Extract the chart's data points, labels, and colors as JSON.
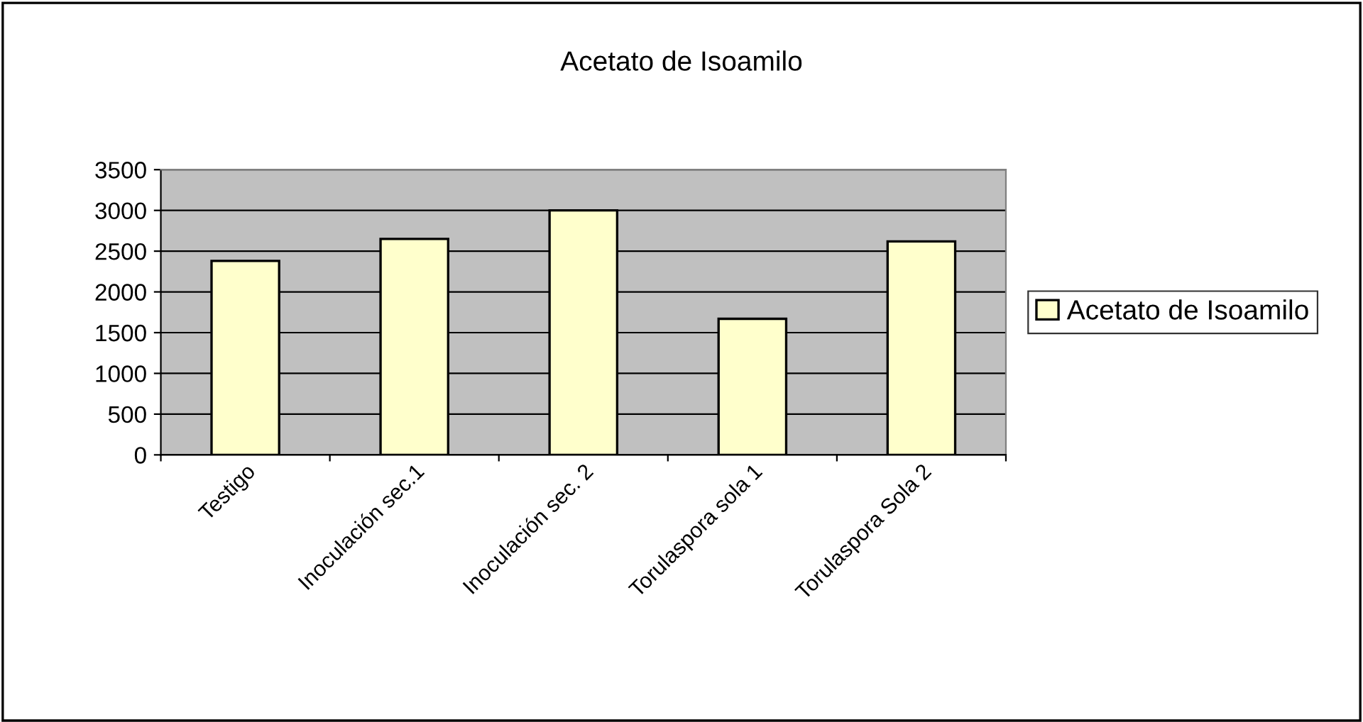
{
  "chart_data": {
    "type": "bar",
    "title": "Acetato de Isoamilo",
    "categories": [
      "Testigo",
      "Inoculación sec.1",
      "Inoculación sec. 2",
      "Torulaspora sola 1",
      "Torulaspora Sola 2"
    ],
    "series": [
      {
        "name": "Acetato de Isoamilo",
        "color": "#ffffcc",
        "values": [
          2380,
          2650,
          3000,
          1670,
          2620
        ]
      }
    ],
    "ylim": [
      0,
      3500
    ],
    "yticks": [
      0,
      500,
      1000,
      1500,
      2000,
      2500,
      3000,
      3500
    ],
    "grid": "y",
    "legend": "right"
  }
}
